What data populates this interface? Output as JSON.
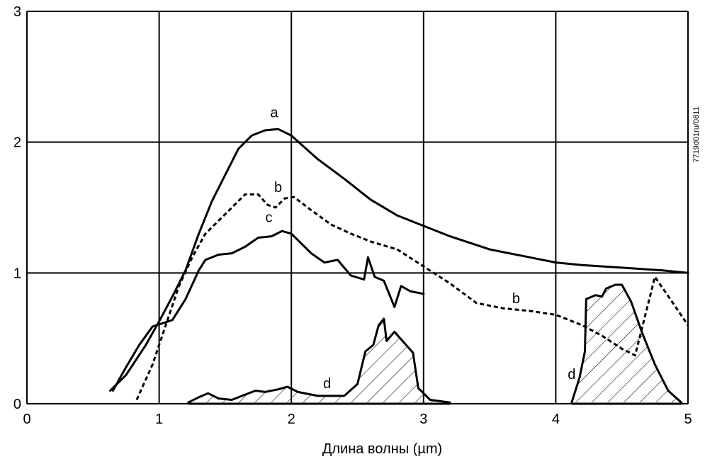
{
  "chart_data": {
    "type": "line",
    "title": "",
    "xlabel": "Длина волны (µm)",
    "ylabel": "",
    "xlim": [
      0,
      5
    ],
    "ylim": [
      0,
      3
    ],
    "x_ticks": [
      "0",
      "1",
      "2",
      "3",
      "4",
      "5"
    ],
    "y_ticks": [
      "0",
      "1",
      "2",
      "3"
    ],
    "grid": true,
    "figure_code": "7719d01ru/0811",
    "series": [
      {
        "name": "a",
        "style": "solid",
        "points": [
          [
            0.63,
            0.1
          ],
          [
            0.75,
            0.22
          ],
          [
            0.9,
            0.45
          ],
          [
            1.0,
            0.63
          ],
          [
            1.1,
            0.82
          ],
          [
            1.2,
            1.02
          ],
          [
            1.3,
            1.3
          ],
          [
            1.4,
            1.55
          ],
          [
            1.5,
            1.75
          ],
          [
            1.6,
            1.95
          ],
          [
            1.7,
            2.05
          ],
          [
            1.8,
            2.09
          ],
          [
            1.9,
            2.1
          ],
          [
            2.0,
            2.05
          ],
          [
            2.1,
            1.96
          ],
          [
            2.2,
            1.87
          ],
          [
            2.4,
            1.72
          ],
          [
            2.6,
            1.56
          ],
          [
            2.8,
            1.44
          ],
          [
            3.0,
            1.36
          ],
          [
            3.2,
            1.28
          ],
          [
            3.5,
            1.18
          ],
          [
            3.8,
            1.12
          ],
          [
            4.0,
            1.08
          ],
          [
            4.2,
            1.06
          ],
          [
            4.5,
            1.04
          ],
          [
            4.8,
            1.02
          ],
          [
            5.0,
            1.0
          ]
        ]
      },
      {
        "name": "b",
        "style": "dashed",
        "points": [
          [
            0.83,
            0.03
          ],
          [
            0.95,
            0.3
          ],
          [
            1.05,
            0.6
          ],
          [
            1.15,
            0.9
          ],
          [
            1.25,
            1.12
          ],
          [
            1.35,
            1.3
          ],
          [
            1.45,
            1.4
          ],
          [
            1.55,
            1.5
          ],
          [
            1.65,
            1.6
          ],
          [
            1.75,
            1.6
          ],
          [
            1.82,
            1.52
          ],
          [
            1.88,
            1.5
          ],
          [
            1.95,
            1.57
          ],
          [
            2.02,
            1.58
          ],
          [
            2.15,
            1.48
          ],
          [
            2.3,
            1.37
          ],
          [
            2.45,
            1.3
          ],
          [
            2.6,
            1.24
          ],
          [
            2.8,
            1.18
          ],
          [
            3.0,
            1.05
          ],
          [
            3.2,
            0.92
          ],
          [
            3.4,
            0.77
          ],
          [
            3.6,
            0.73
          ],
          [
            3.8,
            0.71
          ],
          [
            4.0,
            0.68
          ],
          [
            4.2,
            0.6
          ],
          [
            4.35,
            0.52
          ],
          [
            4.5,
            0.42
          ],
          [
            4.6,
            0.37
          ],
          [
            4.75,
            0.97
          ],
          [
            4.9,
            0.75
          ],
          [
            5.0,
            0.6
          ]
        ]
      },
      {
        "name": "c",
        "style": "solid",
        "points": [
          [
            0.65,
            0.1
          ],
          [
            0.75,
            0.28
          ],
          [
            0.85,
            0.45
          ],
          [
            0.95,
            0.59
          ],
          [
            1.1,
            0.64
          ],
          [
            1.2,
            0.8
          ],
          [
            1.3,
            1.02
          ],
          [
            1.35,
            1.1
          ],
          [
            1.45,
            1.14
          ],
          [
            1.55,
            1.15
          ],
          [
            1.65,
            1.2
          ],
          [
            1.75,
            1.27
          ],
          [
            1.85,
            1.28
          ],
          [
            1.93,
            1.32
          ],
          [
            2.0,
            1.3
          ],
          [
            2.15,
            1.15
          ],
          [
            2.25,
            1.08
          ],
          [
            2.35,
            1.1
          ],
          [
            2.45,
            0.98
          ],
          [
            2.55,
            0.95
          ],
          [
            2.58,
            1.12
          ],
          [
            2.63,
            0.97
          ],
          [
            2.7,
            0.94
          ],
          [
            2.78,
            0.74
          ],
          [
            2.83,
            0.9
          ],
          [
            2.9,
            0.86
          ],
          [
            3.0,
            0.84
          ]
        ]
      },
      {
        "name": "d",
        "style": "solid-hatched",
        "segments": [
          [
            [
              1.22,
              0.01
            ],
            [
              1.3,
              0.05
            ],
            [
              1.37,
              0.08
            ],
            [
              1.45,
              0.04
            ],
            [
              1.55,
              0.03
            ],
            [
              1.65,
              0.07
            ],
            [
              1.73,
              0.1
            ],
            [
              1.8,
              0.09
            ],
            [
              1.9,
              0.11
            ],
            [
              1.97,
              0.13
            ],
            [
              2.05,
              0.09
            ],
            [
              2.2,
              0.06
            ],
            [
              2.4,
              0.06
            ],
            [
              2.5,
              0.15
            ],
            [
              2.56,
              0.4
            ],
            [
              2.62,
              0.45
            ],
            [
              2.66,
              0.6
            ],
            [
              2.7,
              0.65
            ],
            [
              2.72,
              0.48
            ],
            [
              2.78,
              0.55
            ],
            [
              2.85,
              0.47
            ],
            [
              2.92,
              0.39
            ],
            [
              2.96,
              0.12
            ],
            [
              3.05,
              0.03
            ],
            [
              3.2,
              0.01
            ]
          ],
          [
            [
              4.12,
              0.01
            ],
            [
              4.18,
              0.2
            ],
            [
              4.22,
              0.4
            ],
            [
              4.23,
              0.8
            ],
            [
              4.3,
              0.83
            ],
            [
              4.35,
              0.82
            ],
            [
              4.38,
              0.88
            ],
            [
              4.45,
              0.91
            ],
            [
              4.5,
              0.91
            ],
            [
              4.57,
              0.78
            ],
            [
              4.65,
              0.55
            ],
            [
              4.75,
              0.3
            ],
            [
              4.85,
              0.1
            ],
            [
              4.95,
              0.01
            ]
          ]
        ]
      }
    ],
    "annotations": [
      {
        "text": "a",
        "x": 1.87,
        "y": 2.19
      },
      {
        "text": "b",
        "x": 1.9,
        "y": 1.62
      },
      {
        "text": "c",
        "x": 1.83,
        "y": 1.39
      },
      {
        "text": "d",
        "x": 2.27,
        "y": 0.12
      },
      {
        "text": "b",
        "x": 3.7,
        "y": 0.77
      },
      {
        "text": "d",
        "x": 4.12,
        "y": 0.19
      }
    ]
  }
}
